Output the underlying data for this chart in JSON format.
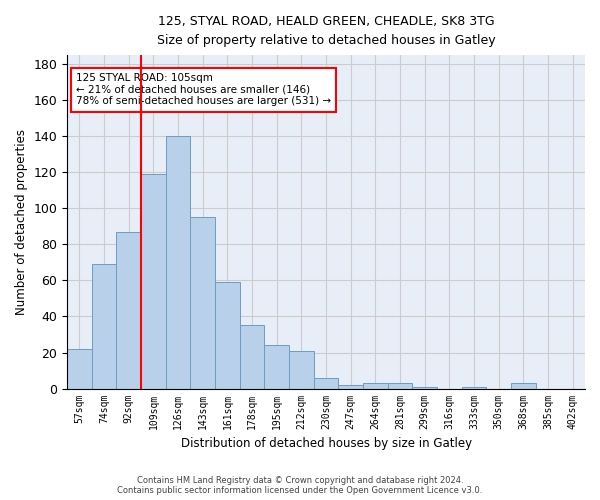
{
  "title1": "125, STYAL ROAD, HEALD GREEN, CHEADLE, SK8 3TG",
  "title2": "Size of property relative to detached houses in Gatley",
  "xlabel": "Distribution of detached houses by size in Gatley",
  "ylabel": "Number of detached properties",
  "bin_labels": [
    "57sqm",
    "74sqm",
    "92sqm",
    "109sqm",
    "126sqm",
    "143sqm",
    "161sqm",
    "178sqm",
    "195sqm",
    "212sqm",
    "230sqm",
    "247sqm",
    "264sqm",
    "281sqm",
    "299sqm",
    "316sqm",
    "333sqm",
    "350sqm",
    "368sqm",
    "385sqm",
    "402sqm"
  ],
  "bar_heights": [
    22,
    69,
    87,
    119,
    140,
    95,
    59,
    35,
    24,
    21,
    6,
    2,
    3,
    3,
    1,
    0,
    1,
    0,
    3,
    0,
    0
  ],
  "bar_color": "#b8d0ea",
  "bar_edge_color": "#6b9dc2",
  "vline_x_idx": 2,
  "vline_color": "red",
  "annotation_text": "125 STYAL ROAD: 105sqm\n← 21% of detached houses are smaller (146)\n78% of semi-detached houses are larger (531) →",
  "annotation_box_color": "white",
  "annotation_box_edge": "red",
  "ylim": [
    0,
    185
  ],
  "yticks": [
    0,
    20,
    40,
    60,
    80,
    100,
    120,
    140,
    160,
    180
  ],
  "grid_color": "#cccccc",
  "background_color": "#e8eef8",
  "footer1": "Contains HM Land Registry data © Crown copyright and database right 2024.",
  "footer2": "Contains public sector information licensed under the Open Government Licence v3.0."
}
